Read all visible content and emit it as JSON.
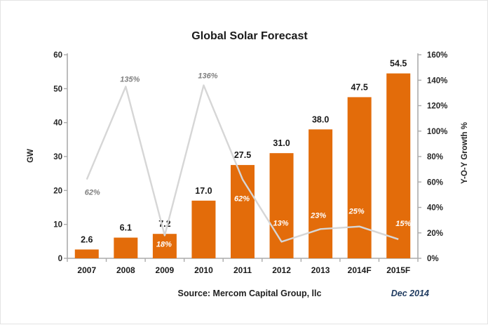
{
  "chart_data": {
    "type": "bar",
    "subtype": "combo-bar-line",
    "title": "Global Solar Forecast",
    "categories": [
      "2007",
      "2008",
      "2009",
      "2010",
      "2011",
      "2012",
      "2013",
      "2014F",
      "2015F"
    ],
    "series": [
      {
        "name": "GW",
        "type": "bar",
        "axis": "left",
        "color": "#E36C0A",
        "values": [
          2.6,
          6.1,
          7.2,
          17.0,
          27.5,
          31.0,
          38.0,
          47.5,
          54.5
        ],
        "labels": [
          "2.6",
          "6.1",
          "7.2",
          "17.0",
          "27.5",
          "31.0",
          "38.0",
          "47.5",
          "54.5"
        ]
      },
      {
        "name": "Y-O-Y Growth %",
        "type": "line",
        "axis": "right",
        "color": "#D6D6D6",
        "values": [
          62,
          135,
          18,
          136,
          62,
          13,
          23,
          25,
          15
        ],
        "labels": [
          "62%",
          "135%",
          "18%",
          "136%",
          "62%",
          "13%",
          "23%",
          "25%",
          "15%"
        ]
      }
    ],
    "left_axis": {
      "label": "GW",
      "min": 0,
      "max": 60,
      "step": 10,
      "ticks": [
        "0",
        "10",
        "20",
        "30",
        "40",
        "50",
        "60"
      ]
    },
    "right_axis": {
      "label": "Y-O-Y Growth %",
      "min": 0,
      "max": 160,
      "step": 20,
      "ticks": [
        "0%",
        "20%",
        "40%",
        "60%",
        "80%",
        "100%",
        "120%",
        "140%",
        "160%"
      ]
    },
    "grid": false,
    "legend": "none",
    "axis_color": "#ABABAB",
    "tick_text_color": "#262626",
    "outside_label_color": "#7F7F7F",
    "inside_label_color": "#FFFFFF"
  },
  "footer": {
    "source": "Source: Mercom Capital Group, llc",
    "date": "Dec 2014"
  }
}
